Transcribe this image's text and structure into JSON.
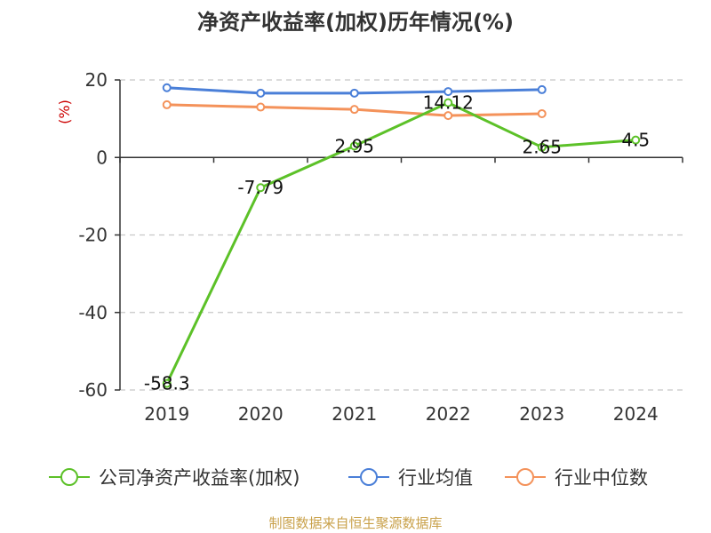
{
  "chart_data": {
    "type": "line",
    "title": "净资产收益率(加权)历年情况(%)",
    "ylabel": "(%)",
    "xlabel": "",
    "categories": [
      "2019",
      "2020",
      "2021",
      "2022",
      "2023",
      "2024"
    ],
    "ylim": [
      -60,
      20
    ],
    "yticks": [
      20,
      0,
      -20,
      -40,
      -60
    ],
    "grid": true,
    "legend_position": "bottom",
    "series": [
      {
        "name": "公司净资产收益率(加权)",
        "color": "#5cc128",
        "values": [
          -58.3,
          -7.79,
          2.95,
          14.12,
          2.65,
          4.5
        ],
        "labels": [
          "-58.3",
          "-7.79",
          "2.95",
          "14.12",
          "2.65",
          "4.5"
        ]
      },
      {
        "name": "行业均值",
        "color": "#4a7fd8",
        "values": [
          18,
          16.6,
          16.6,
          17,
          17.5,
          null
        ]
      },
      {
        "name": "行业中位数",
        "color": "#f4925a",
        "values": [
          13.6,
          13,
          12.4,
          10.8,
          11.3,
          null
        ]
      }
    ]
  },
  "source": "制图数据来自恒生聚源数据库"
}
